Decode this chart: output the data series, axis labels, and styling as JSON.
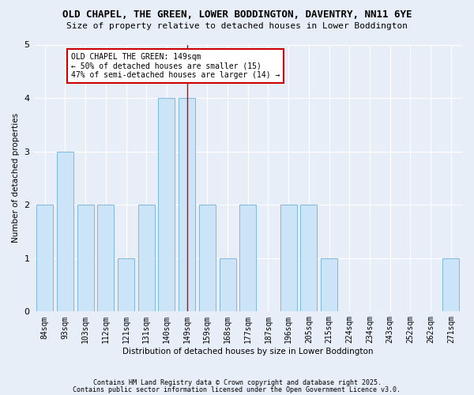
{
  "title": "OLD CHAPEL, THE GREEN, LOWER BODDINGTON, DAVENTRY, NN11 6YE",
  "subtitle": "Size of property relative to detached houses in Lower Boddington",
  "xlabel": "Distribution of detached houses by size in Lower Boddington",
  "ylabel": "Number of detached properties",
  "categories": [
    "84sqm",
    "93sqm",
    "103sqm",
    "112sqm",
    "121sqm",
    "131sqm",
    "140sqm",
    "149sqm",
    "159sqm",
    "168sqm",
    "177sqm",
    "187sqm",
    "196sqm",
    "205sqm",
    "215sqm",
    "224sqm",
    "234sqm",
    "243sqm",
    "252sqm",
    "262sqm",
    "271sqm"
  ],
  "values": [
    2,
    3,
    2,
    2,
    1,
    2,
    4,
    4,
    2,
    1,
    2,
    0,
    2,
    2,
    1,
    0,
    0,
    0,
    0,
    0,
    1
  ],
  "bar_color": "#cce4f7",
  "bar_edge_color": "#7db8dc",
  "highlight_index": 7,
  "highlight_line_color": "#cc0000",
  "ylim": [
    0,
    5
  ],
  "yticks": [
    0,
    1,
    2,
    3,
    4,
    5
  ],
  "annotation_text": "OLD CHAPEL THE GREEN: 149sqm\n← 50% of detached houses are smaller (15)\n47% of semi-detached houses are larger (14) →",
  "annotation_box_color": "#ffffff",
  "annotation_box_edge": "#cc0000",
  "footer1": "Contains HM Land Registry data © Crown copyright and database right 2025.",
  "footer2": "Contains public sector information licensed under the Open Government Licence v3.0.",
  "bg_color": "#e8eef8",
  "plot_bg_color": "#e8eef8",
  "grid_color": "#ffffff",
  "title_fontsize": 9,
  "subtitle_fontsize": 8
}
